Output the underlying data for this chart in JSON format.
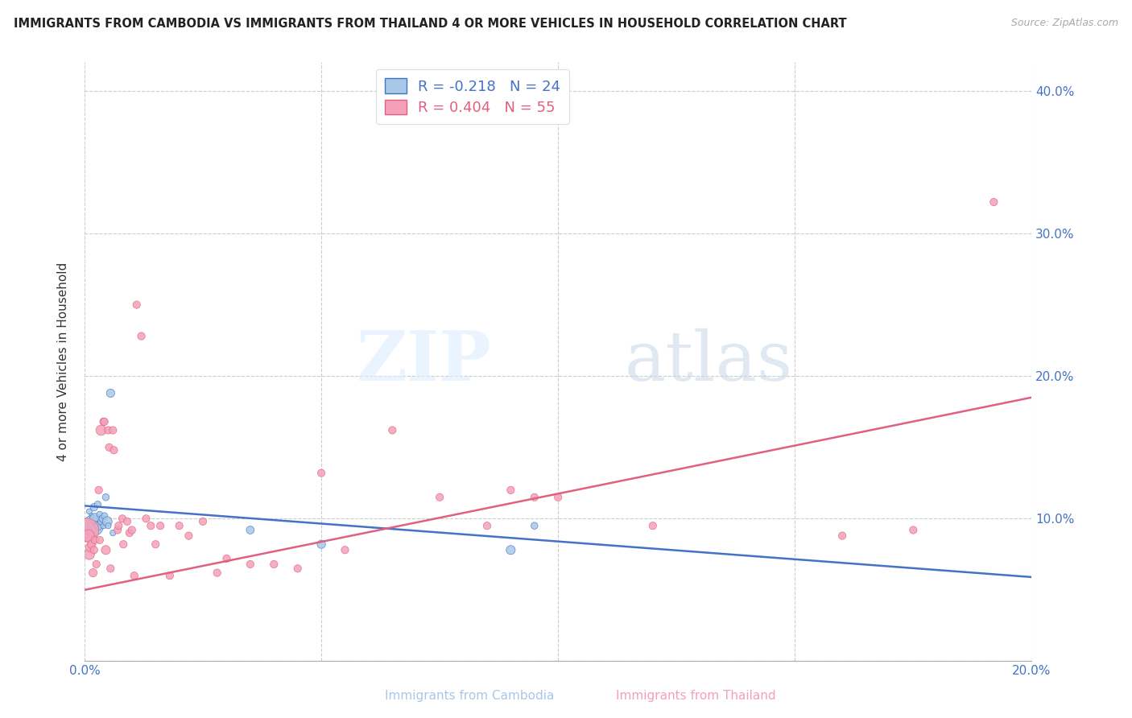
{
  "title": "IMMIGRANTS FROM CAMBODIA VS IMMIGRANTS FROM THAILAND 4 OR MORE VEHICLES IN HOUSEHOLD CORRELATION CHART",
  "source": "Source: ZipAtlas.com",
  "xlabel_cambodia": "Immigrants from Cambodia",
  "xlabel_thailand": "Immigrants from Thailand",
  "ylabel": "4 or more Vehicles in Household",
  "xlim": [
    0.0,
    0.2
  ],
  "ylim": [
    0.0,
    0.42
  ],
  "x_ticks": [
    0.0,
    0.05,
    0.1,
    0.15,
    0.2
  ],
  "x_tick_labels": [
    "0.0%",
    "",
    "",
    "",
    "20.0%"
  ],
  "y_ticks": [
    0.0,
    0.1,
    0.2,
    0.3,
    0.4
  ],
  "y_tick_labels": [
    "",
    "10.0%",
    "20.0%",
    "30.0%",
    "40.0%"
  ],
  "legend_r_cambodia": "R = -0.218",
  "legend_n_cambodia": "N = 24",
  "legend_r_thailand": "R = 0.404",
  "legend_n_thailand": "N = 55",
  "color_cambodia": "#a8c8e8",
  "color_thailand": "#f4a0b8",
  "color_line_cambodia": "#4472c4",
  "color_line_thailand": "#e06080",
  "color_axis_labels": "#4472c4",
  "watermark_zip": "ZIP",
  "watermark_atlas": "atlas",
  "line_cambodia_x0": 0.0,
  "line_cambodia_y0": 0.109,
  "line_cambodia_x1": 0.2,
  "line_cambodia_y1": 0.059,
  "line_thailand_x0": 0.0,
  "line_thailand_y0": 0.05,
  "line_thailand_x1": 0.2,
  "line_thailand_y1": 0.185,
  "cambodia_x": [
    0.0008,
    0.001,
    0.0012,
    0.0015,
    0.0018,
    0.002,
    0.0022,
    0.0025,
    0.0028,
    0.003,
    0.0032,
    0.0035,
    0.0038,
    0.004,
    0.0042,
    0.0045,
    0.0048,
    0.005,
    0.0055,
    0.006,
    0.035,
    0.05,
    0.09,
    0.095
  ],
  "cambodia_y": [
    0.092,
    0.105,
    0.098,
    0.102,
    0.095,
    0.108,
    0.1,
    0.096,
    0.11,
    0.095,
    0.103,
    0.098,
    0.1,
    0.095,
    0.102,
    0.115,
    0.098,
    0.095,
    0.188,
    0.09,
    0.092,
    0.082,
    0.078,
    0.095
  ],
  "cambodia_sizes": [
    30,
    25,
    20,
    20,
    350,
    45,
    90,
    30,
    35,
    55,
    30,
    38,
    40,
    28,
    32,
    38,
    75,
    28,
    55,
    28,
    50,
    55,
    65,
    38
  ],
  "thailand_x": [
    0.0005,
    0.0008,
    0.001,
    0.0012,
    0.0015,
    0.0018,
    0.002,
    0.0022,
    0.0025,
    0.003,
    0.0032,
    0.0035,
    0.004,
    0.0042,
    0.0045,
    0.005,
    0.0052,
    0.0055,
    0.006,
    0.0062,
    0.007,
    0.0072,
    0.008,
    0.0082,
    0.009,
    0.0095,
    0.01,
    0.0105,
    0.011,
    0.012,
    0.013,
    0.014,
    0.015,
    0.016,
    0.018,
    0.02,
    0.022,
    0.025,
    0.028,
    0.03,
    0.035,
    0.04,
    0.045,
    0.05,
    0.055,
    0.065,
    0.075,
    0.085,
    0.09,
    0.095,
    0.1,
    0.12,
    0.16,
    0.175,
    0.192
  ],
  "thailand_y": [
    0.092,
    0.088,
    0.075,
    0.08,
    0.082,
    0.062,
    0.078,
    0.085,
    0.068,
    0.12,
    0.085,
    0.162,
    0.168,
    0.168,
    0.078,
    0.162,
    0.15,
    0.065,
    0.162,
    0.148,
    0.092,
    0.095,
    0.1,
    0.082,
    0.098,
    0.09,
    0.092,
    0.06,
    0.25,
    0.228,
    0.1,
    0.095,
    0.082,
    0.095,
    0.06,
    0.095,
    0.088,
    0.098,
    0.062,
    0.072,
    0.068,
    0.068,
    0.065,
    0.132,
    0.078,
    0.162,
    0.115,
    0.095,
    0.12,
    0.115,
    0.115,
    0.095,
    0.088,
    0.092,
    0.322
  ],
  "thailand_sizes": [
    450,
    120,
    90,
    70,
    55,
    55,
    45,
    45,
    45,
    45,
    45,
    85,
    45,
    45,
    65,
    45,
    45,
    45,
    45,
    45,
    45,
    45,
    45,
    45,
    45,
    45,
    45,
    45,
    45,
    45,
    45,
    45,
    45,
    45,
    45,
    45,
    45,
    45,
    45,
    45,
    45,
    45,
    45,
    45,
    45,
    45,
    45,
    45,
    45,
    45,
    45,
    45,
    45,
    45,
    45
  ]
}
